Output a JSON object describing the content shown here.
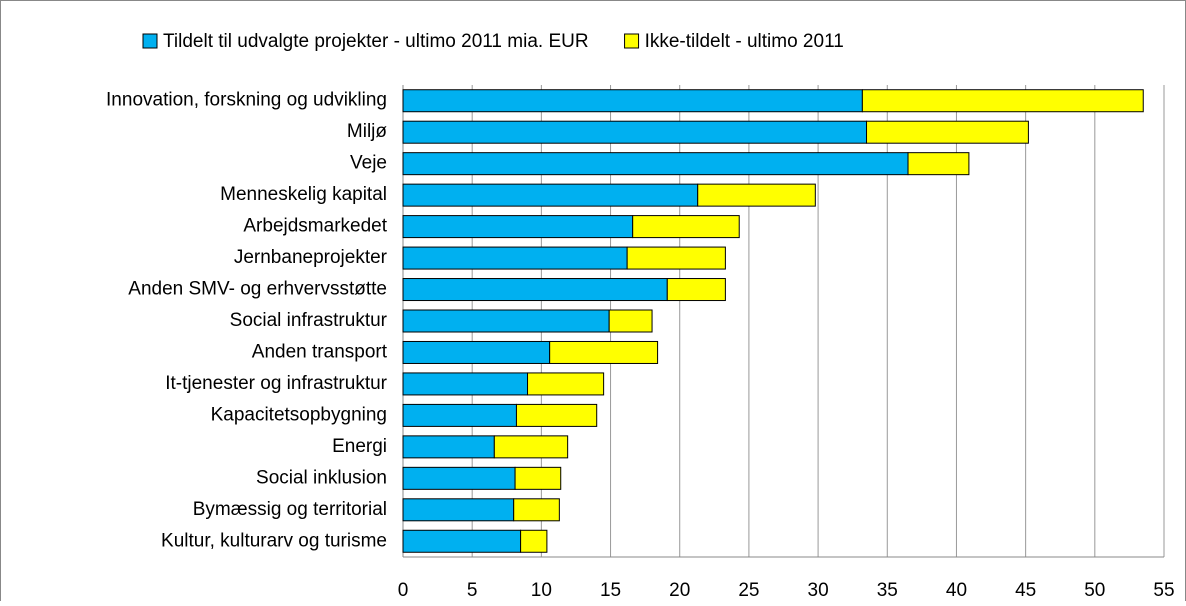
{
  "chart_data": {
    "type": "stacked-bar-horizontal",
    "categories": [
      "Innovation, forskning og udvikling",
      "Miljø",
      "Veje",
      "Menneskelig kapital",
      "Arbejdsmarkedet",
      "Jernbaneprojekter",
      "Anden SMV- og erhvervsstøtte",
      "Social infrastruktur",
      "Anden transport",
      "It-tjenester og infrastruktur",
      "Kapacitetsopbygning",
      "Energi",
      "Social inklusion",
      "Bymæssig og territorial",
      "Kultur, kulturarv og turisme"
    ],
    "series": [
      {
        "name": "Tildelt til udvalgte projekter - ultimo 2011 mia. EUR",
        "color": "#00b0f0",
        "values": [
          33.2,
          33.5,
          36.5,
          21.3,
          16.6,
          16.2,
          19.1,
          14.9,
          10.6,
          9.0,
          8.2,
          6.6,
          8.1,
          8.0,
          8.5
        ]
      },
      {
        "name": "Ikke-tildelt - ultimo 2011",
        "color": "#ffff00",
        "values": [
          20.3,
          11.7,
          4.4,
          8.5,
          7.7,
          7.1,
          4.2,
          3.1,
          7.8,
          5.5,
          5.8,
          5.3,
          3.3,
          3.3,
          1.9
        ]
      }
    ],
    "xlim": [
      0,
      55
    ],
    "xticks": [
      0,
      5,
      10,
      15,
      20,
      25,
      30,
      35,
      40,
      45,
      50,
      55
    ],
    "grid": true
  }
}
